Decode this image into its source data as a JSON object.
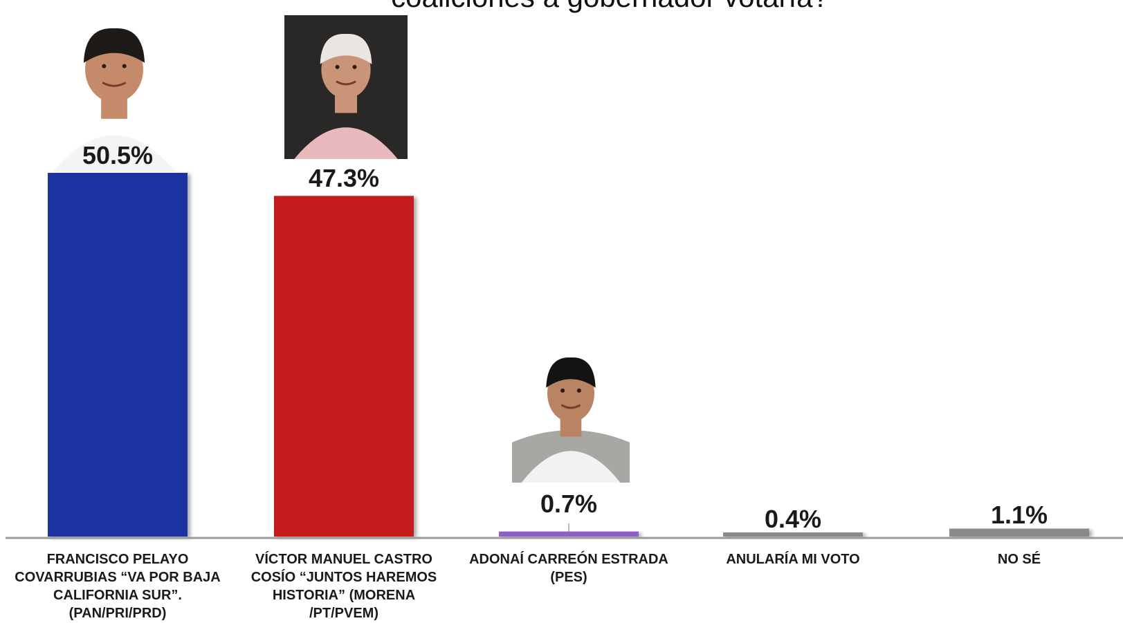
{
  "chart_data": {
    "type": "bar",
    "title": "coaliciones a gobernador votaría?",
    "categories": [
      "FRANCISCO PELAYO COVARRUBIAS “VA POR BAJA CALIFORNIA SUR”. (PAN/PRI/PRD)",
      "VÍCTOR MANUEL CASTRO COSÍO “JUNTOS HAREMOS HISTORIA” (MORENA /PT/PVEM)",
      "ADONAÍ CARREÓN ESTRADA (PES)",
      "ANULARÍA MI VOTO",
      "NO SÉ"
    ],
    "values": [
      50.5,
      47.3,
      0.7,
      0.4,
      1.1
    ],
    "value_labels": [
      "50.5%",
      "47.3%",
      "0.7%",
      "0.4%",
      "1.1%"
    ],
    "colors": [
      "#1c33a0",
      "#c41a1a",
      "#8e5ec6",
      "#8a8a8a",
      "#8a8a8a"
    ],
    "ylim": [
      0,
      50.5
    ],
    "xlabel": "",
    "ylabel": "",
    "grid": false
  },
  "photos": [
    {
      "name": "francisco-pelayo-photo",
      "candidate": 0,
      "skin": "#c48a6a",
      "hair": "#1e1a18",
      "shirt": "#f4f4f4",
      "bg": "#ffffff"
    },
    {
      "name": "victor-castro-photo",
      "candidate": 1,
      "skin": "#c99478",
      "hair": "#e9e6e2",
      "shirt": "#e8b9bd",
      "bg": "#2a2826"
    },
    {
      "name": "adonai-carreon-photo",
      "candidate": 2,
      "skin": "#b88462",
      "hair": "#141212",
      "shirt": "#f2f2f2",
      "bg": "#ffffff"
    }
  ]
}
